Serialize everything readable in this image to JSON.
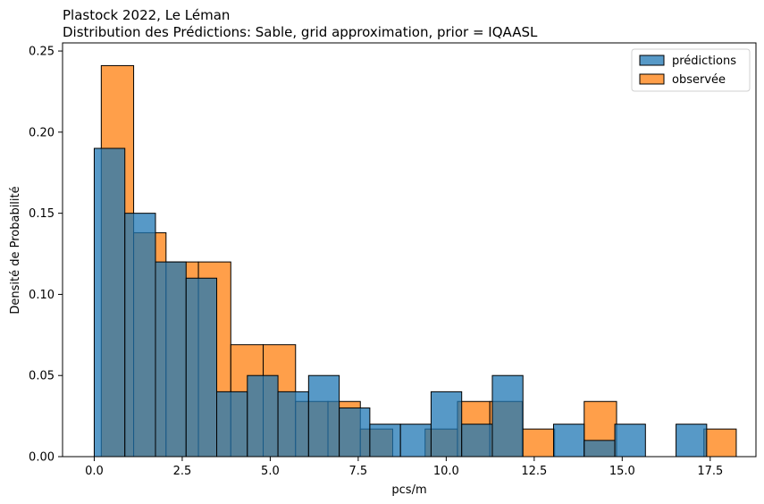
{
  "chart_data": {
    "type": "histogram",
    "title": "Plastock 2022, Le Léman",
    "subtitle": "Distribution des Prédictions: Sable, grid approximation, prior = IQAASL",
    "xlabel": "pcs/m",
    "ylabel": "Densité de Probabilité",
    "xlim": [
      -0.9,
      18.8
    ],
    "ylim": [
      0,
      0.255
    ],
    "xticks": [
      0.0,
      2.5,
      5.0,
      7.5,
      10.0,
      12.5,
      15.0,
      17.5
    ],
    "xtick_labels": [
      "0.0",
      "2.5",
      "5.0",
      "7.5",
      "10.0",
      "12.5",
      "15.0",
      "17.5"
    ],
    "yticks": [
      0.0,
      0.05,
      0.1,
      0.15,
      0.2,
      0.25
    ],
    "ytick_labels": [
      "0.00",
      "0.05",
      "0.10",
      "0.15",
      "0.20",
      "0.25"
    ],
    "grid": false,
    "legend_position": "top-right",
    "series": [
      {
        "name": "observée",
        "color": "#ff7f0e",
        "bins": [
          {
            "x0": 0.2,
            "x1": 1.12,
            "value": 0.241
          },
          {
            "x0": 1.12,
            "x1": 2.04,
            "value": 0.138
          },
          {
            "x0": 2.04,
            "x1": 2.96,
            "value": 0.12
          },
          {
            "x0": 2.96,
            "x1": 3.88,
            "value": 0.12
          },
          {
            "x0": 3.88,
            "x1": 4.8,
            "value": 0.069
          },
          {
            "x0": 4.8,
            "x1": 5.72,
            "value": 0.069
          },
          {
            "x0": 5.72,
            "x1": 6.64,
            "value": 0.034
          },
          {
            "x0": 6.64,
            "x1": 7.56,
            "value": 0.034
          },
          {
            "x0": 7.56,
            "x1": 8.48,
            "value": 0.017
          },
          {
            "x0": 9.4,
            "x1": 10.32,
            "value": 0.017
          },
          {
            "x0": 10.32,
            "x1": 11.24,
            "value": 0.034
          },
          {
            "x0": 11.24,
            "x1": 12.16,
            "value": 0.034
          },
          {
            "x0": 12.16,
            "x1": 13.08,
            "value": 0.017
          },
          {
            "x0": 13.92,
            "x1": 14.84,
            "value": 0.034
          },
          {
            "x0": 17.32,
            "x1": 18.24,
            "value": 0.017
          }
        ]
      },
      {
        "name": "prédictions",
        "color": "#1f77b4",
        "bins": [
          {
            "x0": 0.0,
            "x1": 0.87,
            "value": 0.19
          },
          {
            "x0": 0.87,
            "x1": 1.74,
            "value": 0.15
          },
          {
            "x0": 1.74,
            "x1": 2.61,
            "value": 0.12
          },
          {
            "x0": 2.61,
            "x1": 3.48,
            "value": 0.11
          },
          {
            "x0": 3.48,
            "x1": 4.35,
            "value": 0.04
          },
          {
            "x0": 4.35,
            "x1": 5.22,
            "value": 0.05
          },
          {
            "x0": 5.22,
            "x1": 6.09,
            "value": 0.04
          },
          {
            "x0": 6.09,
            "x1": 6.96,
            "value": 0.05
          },
          {
            "x0": 6.96,
            "x1": 7.83,
            "value": 0.03
          },
          {
            "x0": 7.83,
            "x1": 8.7,
            "value": 0.02
          },
          {
            "x0": 8.7,
            "x1": 9.57,
            "value": 0.02
          },
          {
            "x0": 9.57,
            "x1": 10.44,
            "value": 0.04
          },
          {
            "x0": 10.44,
            "x1": 11.31,
            "value": 0.02
          },
          {
            "x0": 11.31,
            "x1": 12.18,
            "value": 0.05
          },
          {
            "x0": 13.05,
            "x1": 13.92,
            "value": 0.02
          },
          {
            "x0": 13.92,
            "x1": 14.79,
            "value": 0.01
          },
          {
            "x0": 14.79,
            "x1": 15.66,
            "value": 0.02
          },
          {
            "x0": 16.53,
            "x1": 17.4,
            "value": 0.02
          }
        ]
      }
    ]
  }
}
